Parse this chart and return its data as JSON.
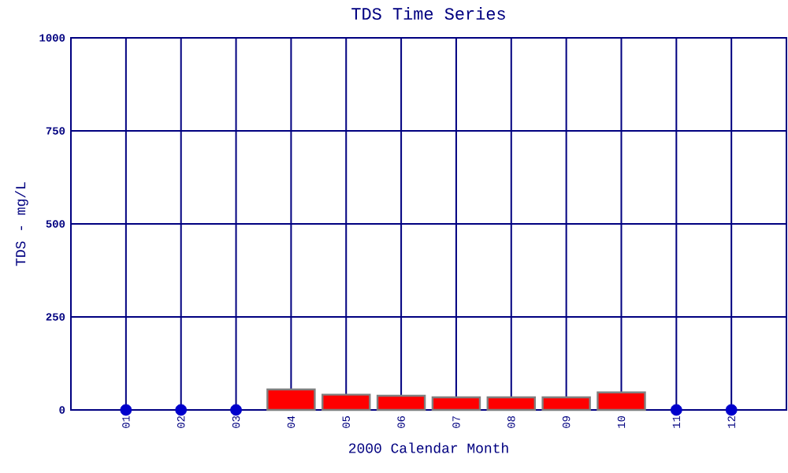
{
  "chart_data": {
    "type": "bar",
    "title": "TDS Time Series",
    "xlabel": "2000 Calendar Month",
    "ylabel": "TDS - mg/L",
    "categories": [
      "01",
      "02",
      "03",
      "04",
      "05",
      "06",
      "07",
      "08",
      "09",
      "10",
      "11",
      "12"
    ],
    "series": [
      {
        "color": "#ff0000",
        "values": [
          null,
          null,
          null,
          55,
          41,
          38,
          34,
          34,
          34,
          47,
          null,
          null
        ]
      },
      {
        "type": "scatter",
        "color": "#0000cc",
        "marker": "circle",
        "x": [
          "01",
          "02",
          "03",
          "11",
          "12"
        ],
        "values": [
          0,
          0,
          0,
          0,
          0
        ]
      }
    ],
    "ylim": [
      0,
      1000
    ],
    "yticks": [
      0,
      250,
      500,
      750,
      1000
    ],
    "grid": true
  }
}
